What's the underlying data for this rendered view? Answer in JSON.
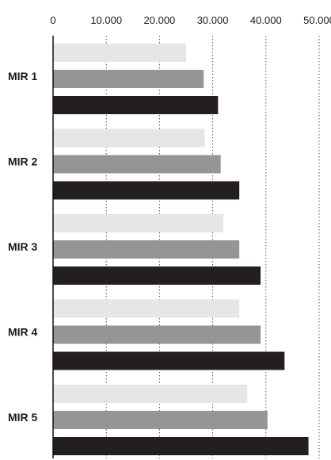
{
  "chart_data": {
    "type": "bar",
    "orientation": "horizontal",
    "categories": [
      "MIR 1",
      "MIR 2",
      "MIR 3",
      "MIR 4",
      "MIR 5"
    ],
    "series": [
      {
        "color": "#e6e6e6",
        "values": [
          25000,
          28500,
          32000,
          35000,
          36500
        ]
      },
      {
        "color": "#959595",
        "values": [
          28300,
          31500,
          35000,
          39000,
          40300
        ]
      },
      {
        "color": "#231f20",
        "values": [
          31000,
          35000,
          39000,
          43500,
          48000
        ]
      }
    ],
    "xlim": [
      0,
      50000
    ],
    "xticks": [
      "0",
      "10.000",
      "20.000",
      "30.000",
      "40.000",
      "50.000"
    ],
    "grid": "vertical dotted",
    "legend": "none"
  }
}
